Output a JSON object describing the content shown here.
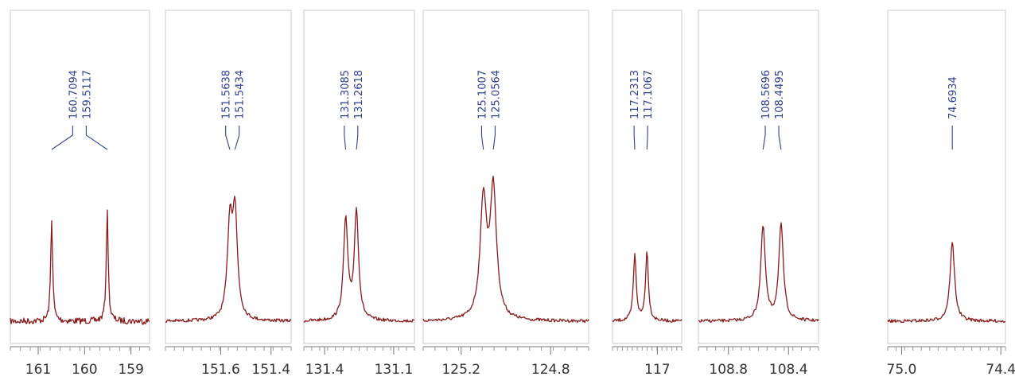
{
  "colors": {
    "trace": "#8b1a1a",
    "annotation": "#2f3f96",
    "frame": "#c9c9c9",
    "axis": "#777777"
  },
  "chart_data": {
    "type": "line",
    "title": "",
    "xlabel": "",
    "ylabel": "",
    "x_direction": "descending",
    "grid": false,
    "legend": "none",
    "panels": [
      {
        "xlim": [
          161.6,
          158.6
        ],
        "ticks": [
          161,
          160,
          159
        ],
        "tick_labels": [
          "161",
          "160",
          "159"
        ],
        "peaks": [
          {
            "label": "160.7094",
            "ppm": 160.7094,
            "height": 0.62
          },
          {
            "label": "159.5117",
            "ppm": 159.5117,
            "height": 0.67
          }
        ]
      },
      {
        "xlim": [
          151.82,
          151.32
        ],
        "ticks": [
          151.6,
          151.4
        ],
        "tick_labels": [
          "151.6",
          "151.4"
        ],
        "peaks": [
          {
            "label": "151.5638",
            "ppm": 151.5638,
            "height": 0.56
          },
          {
            "label": "151.5434",
            "ppm": 151.5434,
            "height": 0.62
          }
        ]
      },
      {
        "xlim": [
          131.49,
          131.01
        ],
        "ticks": [
          131.4,
          131.1
        ],
        "tick_labels": [
          "131.4",
          "131.1"
        ],
        "peaks": [
          {
            "label": "131.3085",
            "ppm": 131.3085,
            "height": 0.61
          },
          {
            "label": "131.2618",
            "ppm": 131.2618,
            "height": 0.66
          }
        ]
      },
      {
        "xlim": [
          125.37,
          124.63
        ],
        "ticks": [
          125.2,
          124.8
        ],
        "tick_labels": [
          "125.2",
          "124.8"
        ],
        "peaks": [
          {
            "label": "125.1007",
            "ppm": 125.1007,
            "height": 0.72
          },
          {
            "label": "125.0564",
            "ppm": 125.0564,
            "height": 0.78
          }
        ]
      },
      {
        "xlim": [
          117.46,
          116.75
        ],
        "ticks": [
          117
        ],
        "tick_labels": [
          "117"
        ],
        "peaks": [
          {
            "label": "117.2313",
            "ppm": 117.2313,
            "height": 0.4
          },
          {
            "label": "117.1067",
            "ppm": 117.1067,
            "height": 0.42
          }
        ]
      },
      {
        "xlim": [
          109.0,
          108.2
        ],
        "ticks": [
          108.8,
          108.4
        ],
        "tick_labels": [
          "108.8",
          "108.4"
        ],
        "peaks": [
          {
            "label": "108.5696",
            "ppm": 108.5696,
            "height": 0.57
          },
          {
            "label": "108.4495",
            "ppm": 108.4495,
            "height": 0.58
          }
        ]
      },
      {
        "xlim": [
          75.084,
          74.372
        ],
        "ticks": [
          75.0,
          74.4
        ],
        "tick_labels": [
          "75.0",
          "74.4"
        ],
        "peaks": [
          {
            "label": "74.6934",
            "ppm": 74.6934,
            "height": 0.48
          }
        ]
      }
    ]
  }
}
